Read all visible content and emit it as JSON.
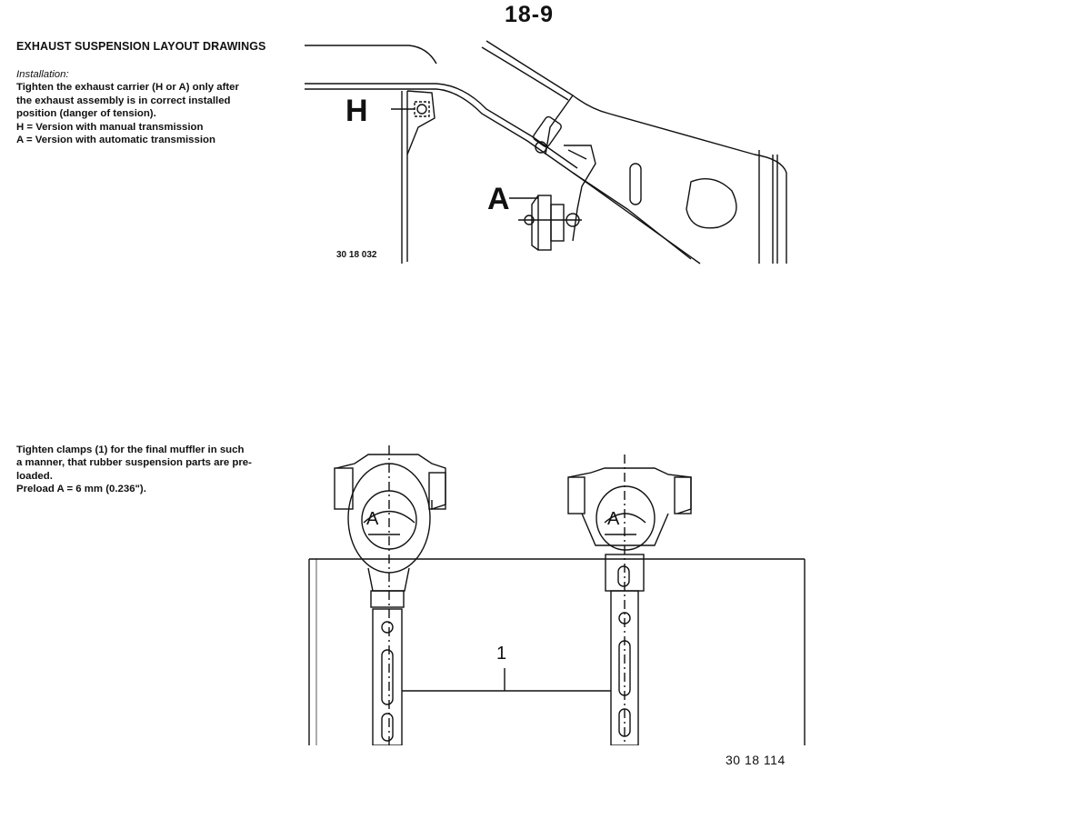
{
  "page": {
    "number": "18-9"
  },
  "section": {
    "title": "EXHAUST SUSPENSION LAYOUT DRAWINGS",
    "installation_label": "Installation:",
    "installation_lines": [
      "Tighten the exhaust carrier (H or A) only after",
      "the exhaust assembly is in correct installed",
      "position (danger of tension).",
      "H = Version with manual transmission",
      "A = Version with automatic transmission"
    ],
    "clamp_lines": [
      "Tighten clamps (1) for the final muffler in such",
      "a manner, that rubber suspension parts are pre-",
      "loaded.",
      "Preload A = 6 mm (0.236\")."
    ]
  },
  "figures": {
    "top": {
      "number": "30 18 032",
      "label_h": "H",
      "label_a": "A"
    },
    "bottom": {
      "number": "30 18 114",
      "label_1": "1",
      "label_a_left": "A",
      "label_a_right": "A"
    }
  }
}
